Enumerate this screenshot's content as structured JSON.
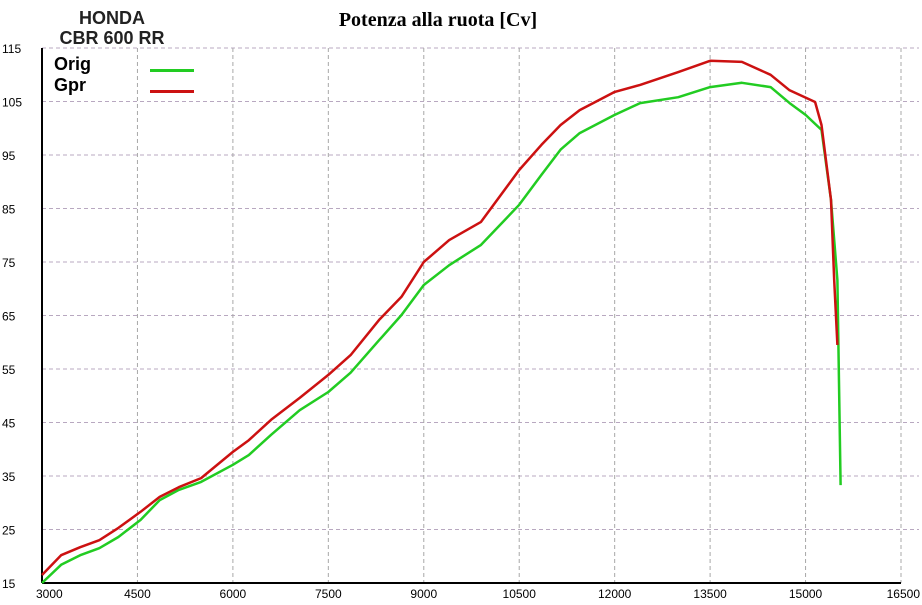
{
  "chart_data": {
    "type": "line",
    "title": "Potenza alla ruota  [Cv]",
    "brand": "HONDA",
    "model": "CBR 600 RR",
    "xlabel": "",
    "ylabel": "",
    "xlim": [
      3000,
      16500
    ],
    "ylim": [
      15,
      115
    ],
    "x_ticks": [
      3000,
      4500,
      6000,
      7500,
      9000,
      10500,
      12000,
      13500,
      15000,
      16500
    ],
    "y_ticks": [
      15,
      25,
      35,
      45,
      55,
      65,
      75,
      85,
      95,
      105,
      115
    ],
    "grid": true,
    "legend_placement": "top-left",
    "series": [
      {
        "name": "Orig",
        "color": "#22cc22",
        "x": [
          3000,
          3300,
          3600,
          3900,
          4200,
          4550,
          4850,
          5150,
          5500,
          6000,
          6250,
          6600,
          7050,
          7500,
          7850,
          8300,
          8650,
          9000,
          9400,
          9900,
          10500,
          10850,
          11150,
          11450,
          12000,
          12400,
          13000,
          13500,
          14000,
          14450,
          14750,
          15000,
          15250,
          15400,
          15500,
          15550
        ],
        "y": [
          15,
          18.4,
          20.2,
          21.5,
          23.6,
          26.8,
          30.5,
          32.4,
          33.9,
          37.1,
          38.9,
          42.7,
          47.3,
          50.7,
          54.3,
          60.4,
          65.1,
          70.7,
          74.4,
          78.2,
          85.7,
          91.3,
          96.0,
          99.1,
          102.5,
          104.7,
          105.8,
          107.7,
          108.5,
          107.7,
          104.7,
          102.5,
          99.7,
          86.6,
          71.6,
          33.3
        ]
      },
      {
        "name": "Gpr",
        "color": "#cc1111",
        "x": [
          3000,
          3300,
          3600,
          3900,
          4200,
          4550,
          4850,
          5150,
          5500,
          6000,
          6250,
          6600,
          7050,
          7500,
          7850,
          8300,
          8650,
          9000,
          9400,
          9900,
          10500,
          10850,
          11150,
          11450,
          12000,
          12400,
          13000,
          13500,
          14000,
          14450,
          14750,
          15150,
          15250,
          15400,
          15450,
          15500
        ],
        "y": [
          16.5,
          20.2,
          21.7,
          23.0,
          25.3,
          28.3,
          31.1,
          32.9,
          34.6,
          39.5,
          41.7,
          45.5,
          49.6,
          53.9,
          57.6,
          64.2,
          68.5,
          75.0,
          79.1,
          82.5,
          92.2,
          96.9,
          100.6,
          103.4,
          106.8,
          108.1,
          110.5,
          112.6,
          112.4,
          110.0,
          107.1,
          104.9,
          100.6,
          86.6,
          71.6,
          59.5
        ]
      }
    ]
  }
}
